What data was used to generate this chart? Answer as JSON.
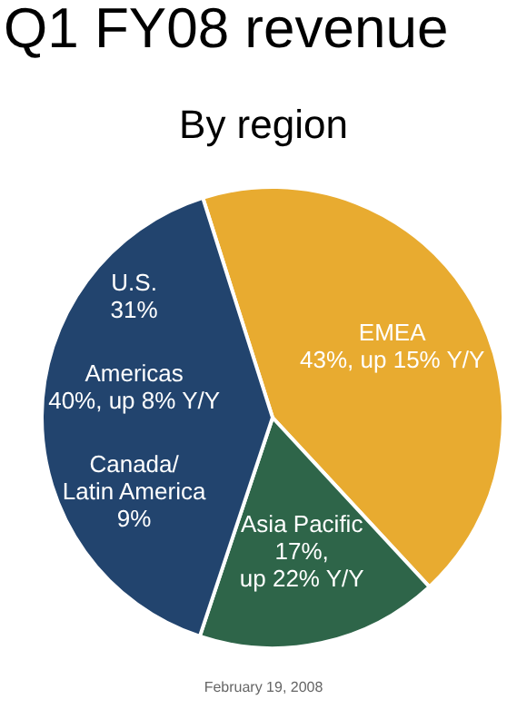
{
  "chart_data": {
    "type": "pie",
    "title": "Q1 FY08 revenue",
    "subtitle": "By region",
    "categories": [
      "EMEA",
      "Asia Pacific",
      "Americas"
    ],
    "values": [
      43,
      17,
      40
    ],
    "colors": [
      "#e8ab30",
      "#2e6549",
      "#22446e"
    ],
    "value_labels": [
      "43%, up 15% Y/Y",
      "17%,\nup 22% Y/Y",
      "40%, up 8% Y/Y"
    ],
    "annotations": [
      {
        "text": "U.S.\n31%",
        "x": "Americas"
      },
      {
        "text": "Canada/\nLatin America\n9%",
        "x": "Americas"
      },
      "February 19, 2008"
    ],
    "legend": false
  }
}
